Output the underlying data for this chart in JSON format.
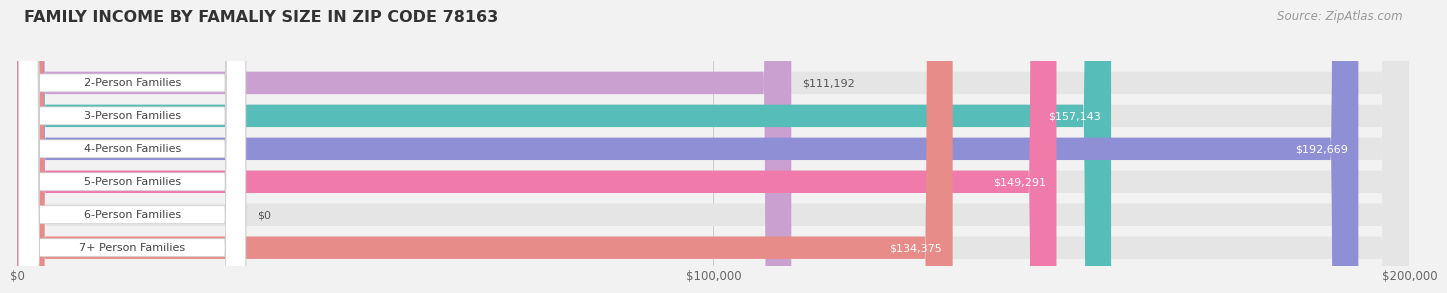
{
  "title": "FAMILY INCOME BY FAMALIY SIZE IN ZIP CODE 78163",
  "source": "Source: ZipAtlas.com",
  "categories": [
    "2-Person Families",
    "3-Person Families",
    "4-Person Families",
    "5-Person Families",
    "6-Person Families",
    "7+ Person Families"
  ],
  "values": [
    111192,
    157143,
    192669,
    149291,
    0,
    134375
  ],
  "bar_colors": [
    "#c9a0d0",
    "#56bdb8",
    "#8f8fd6",
    "#f07aaa",
    "#f5c89a",
    "#e88c8a"
  ],
  "value_labels": [
    "$111,192",
    "$157,143",
    "$192,669",
    "$149,291",
    "$0",
    "$134,375"
  ],
  "value_inside": [
    false,
    true,
    true,
    true,
    false,
    true
  ],
  "xlim": [
    0,
    200000
  ],
  "xtick_vals": [
    0,
    100000,
    200000
  ],
  "xtick_labels": [
    "$0",
    "$100,000",
    "$200,000"
  ],
  "bg_color": "#f2f2f2",
  "bar_bg_color": "#e5e5e5",
  "title_fontsize": 11.5,
  "source_fontsize": 8.5,
  "label_fontsize": 8,
  "value_fontsize": 8,
  "tick_fontsize": 8.5
}
